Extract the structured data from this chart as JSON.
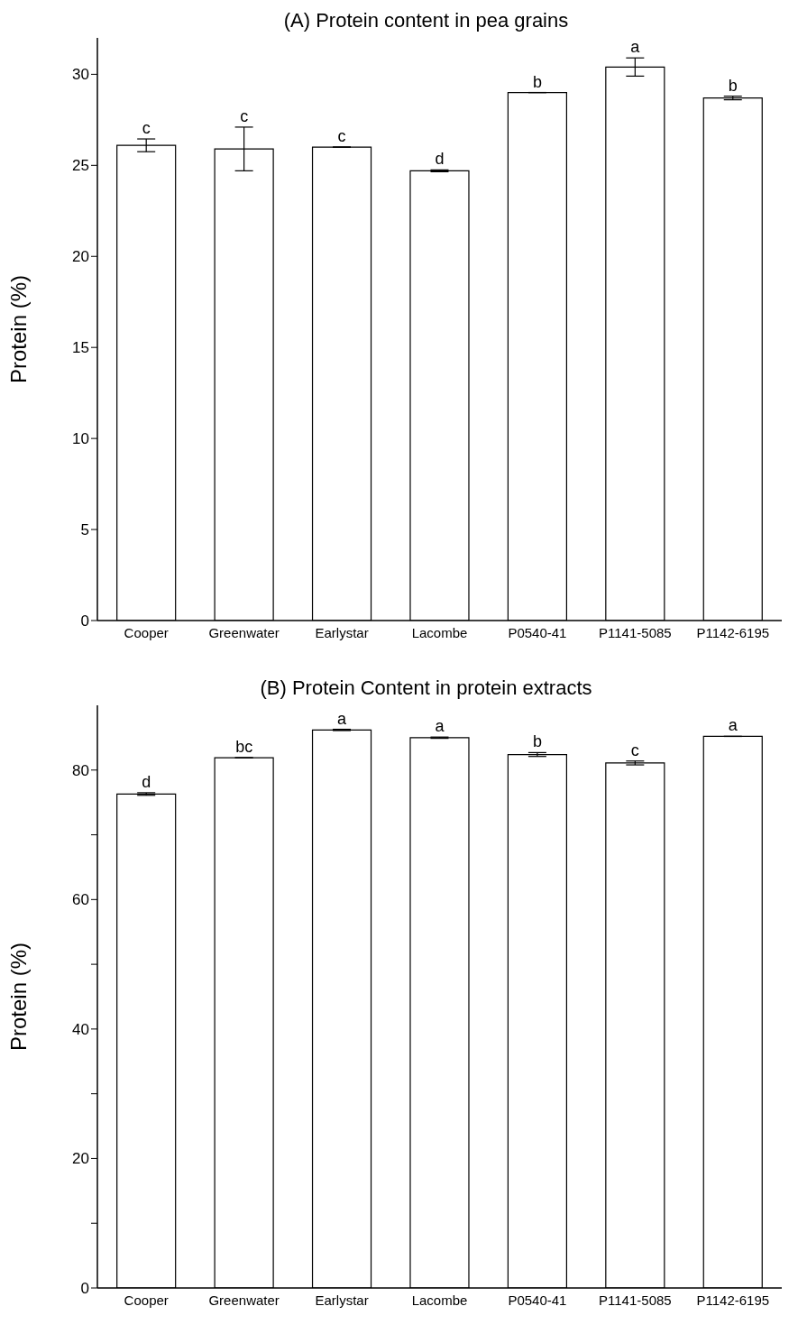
{
  "chart_data": [
    {
      "type": "bar",
      "title": "(A) Protein content in pea grains",
      "ylabel": "Protein (%)",
      "categories": [
        "Cooper",
        "Greenwater",
        "Earlystar",
        "Lacombe",
        "P0540-41",
        "P1141-5085",
        "P1142-6195"
      ],
      "values": [
        26.1,
        25.9,
        26.0,
        24.7,
        29.0,
        30.4,
        28.7
      ],
      "errors": [
        0.35,
        1.2,
        null,
        0.05,
        null,
        0.5,
        0.1
      ],
      "color": "#ffffff",
      "ylim": [
        0,
        32
      ],
      "yticks": [
        0,
        5,
        10,
        15,
        20,
        25,
        30
      ],
      "grid": false,
      "legend": false,
      "annotations": [
        {
          "text": "c",
          "x": "Cooper",
          "y": 26.45
        },
        {
          "text": "c",
          "x": "Greenwater",
          "y": 27.1
        },
        {
          "text": "c",
          "x": "Earlystar",
          "y": 26.0
        },
        {
          "text": "d",
          "x": "Lacombe",
          "y": 24.75
        },
        {
          "text": "b",
          "x": "P0540-41",
          "y": 29.0
        },
        {
          "text": "a",
          "x": "P1141-5085",
          "y": 30.9
        },
        {
          "text": "b",
          "x": "P1142-6195",
          "y": 28.8
        }
      ]
    },
    {
      "type": "bar",
      "title": "(B) Protein Content in protein extracts",
      "ylabel": "Protein (%)",
      "categories": [
        "Cooper",
        "Greenwater",
        "Earlystar",
        "Lacombe",
        "P0540-41",
        "P1141-5085",
        "P1142-6195"
      ],
      "values": [
        76.3,
        81.9,
        86.2,
        85.0,
        82.4,
        81.1,
        85.2
      ],
      "errors": [
        0.2,
        null,
        0.1,
        0.1,
        0.3,
        0.3,
        null
      ],
      "color": "#ffffff",
      "ylim": [
        0,
        90
      ],
      "yticks": [
        0,
        {
          "value": 10,
          "label": null
        },
        20,
        {
          "value": 30,
          "label": null
        },
        40,
        {
          "value": 50,
          "label": null
        },
        60,
        {
          "value": 70,
          "label": null
        },
        80
      ],
      "grid": false,
      "legend": false,
      "annotations": [
        {
          "text": "d",
          "x": "Cooper",
          "y": 76.5
        },
        {
          "text": "bc",
          "x": "Greenwater",
          "y": 81.9
        },
        {
          "text": "a",
          "x": "Earlystar",
          "y": 86.3
        },
        {
          "text": "a",
          "x": "Lacombe",
          "y": 85.1
        },
        {
          "text": "b",
          "x": "P0540-41",
          "y": 82.7
        },
        {
          "text": "c",
          "x": "P1141-5085",
          "y": 81.4
        },
        {
          "text": "a",
          "x": "P1142-6195",
          "y": 85.2
        }
      ]
    }
  ]
}
